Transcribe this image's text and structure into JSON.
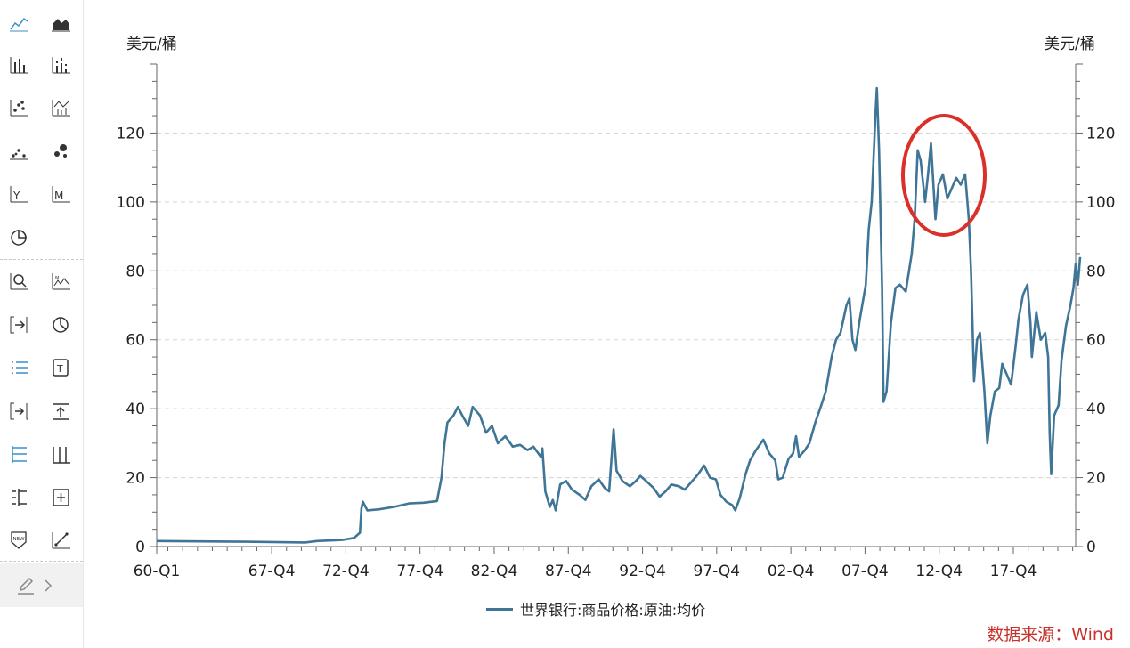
{
  "toolbar": {
    "tools": [
      {
        "icon": "line-chart-icon",
        "active": true
      },
      {
        "icon": "area-chart-icon"
      },
      {
        "icon": "bar-chart-icon"
      },
      {
        "icon": "stacked-bar-chart-icon"
      },
      {
        "icon": "scatter-chart-icon"
      },
      {
        "icon": "waterfall-chart-icon"
      },
      {
        "icon": "dot-plot-icon"
      },
      {
        "icon": "bubble-chart-icon"
      },
      {
        "icon": "yearly-bar-icon"
      },
      {
        "icon": "monthly-bar-icon"
      },
      {
        "icon": "pie-chart-icon"
      },
      {
        "icon": "zoom-icon"
      },
      {
        "icon": "peak-label-icon"
      },
      {
        "icon": "jump-to-end-icon"
      },
      {
        "icon": "pie-slice-icon"
      },
      {
        "icon": "legend-list-icon",
        "active": true
      },
      {
        "icon": "text-box-icon"
      },
      {
        "icon": "shift-right-icon"
      },
      {
        "icon": "upload-axis-icon"
      },
      {
        "icon": "axis-grid-icon",
        "active": true
      },
      {
        "icon": "axis-bar-icon"
      },
      {
        "icon": "split-axis-icon"
      },
      {
        "icon": "add-panel-icon"
      },
      {
        "icon": "new-badge-icon"
      },
      {
        "icon": "trend-line-icon"
      }
    ],
    "bottom_icons": [
      "edit-icon",
      "chevron-right-icon"
    ]
  },
  "chart_data": {
    "type": "line",
    "title": "",
    "ylabel_left": "美元/桶",
    "ylabel_right": "美元/桶",
    "ylim": [
      0,
      140
    ],
    "y_ticks": [
      0,
      20,
      40,
      60,
      80,
      100,
      120
    ],
    "grid": "horizontal dashed",
    "x_range": [
      1960.0,
      2022.25
    ],
    "x_tick_labels": [
      {
        "label": "60-Q1",
        "x": 1960.0
      },
      {
        "label": "67-Q4",
        "x": 1967.75
      },
      {
        "label": "72-Q4",
        "x": 1972.75
      },
      {
        "label": "77-Q4",
        "x": 1977.75
      },
      {
        "label": "82-Q4",
        "x": 1982.75
      },
      {
        "label": "87-Q4",
        "x": 1987.75
      },
      {
        "label": "92-Q4",
        "x": 1992.75
      },
      {
        "label": "97-Q4",
        "x": 1997.75
      },
      {
        "label": "02-Q4",
        "x": 2002.75
      },
      {
        "label": "07-Q4",
        "x": 2007.75
      },
      {
        "label": "12-Q4",
        "x": 2012.75
      },
      {
        "label": "17-Q4",
        "x": 2017.75
      }
    ],
    "series": [
      {
        "name": "世界银行:商品价格:原油:均价",
        "color": "#3f7596",
        "points": [
          [
            1960.0,
            1.6
          ],
          [
            1966.0,
            1.4
          ],
          [
            1970.0,
            1.2
          ],
          [
            1970.8,
            1.6
          ],
          [
            1972.5,
            1.9
          ],
          [
            1973.3,
            2.5
          ],
          [
            1973.7,
            4.0
          ],
          [
            1973.8,
            11.0
          ],
          [
            1973.9,
            13.0
          ],
          [
            1974.2,
            10.5
          ],
          [
            1975.0,
            10.8
          ],
          [
            1976.0,
            11.5
          ],
          [
            1977.0,
            12.5
          ],
          [
            1978.0,
            12.7
          ],
          [
            1978.9,
            13.2
          ],
          [
            1979.2,
            20.0
          ],
          [
            1979.4,
            30.0
          ],
          [
            1979.6,
            36.0
          ],
          [
            1980.0,
            38.0
          ],
          [
            1980.3,
            40.5
          ],
          [
            1980.6,
            38.0
          ],
          [
            1981.0,
            35.0
          ],
          [
            1981.3,
            40.5
          ],
          [
            1981.8,
            38.0
          ],
          [
            1982.2,
            33.0
          ],
          [
            1982.6,
            35.0
          ],
          [
            1983.0,
            30.0
          ],
          [
            1983.5,
            32.0
          ],
          [
            1984.0,
            29.0
          ],
          [
            1984.5,
            29.5
          ],
          [
            1985.0,
            28.0
          ],
          [
            1985.4,
            29.0
          ],
          [
            1985.9,
            26.0
          ],
          [
            1986.0,
            28.5
          ],
          [
            1986.2,
            16.0
          ],
          [
            1986.5,
            11.5
          ],
          [
            1986.7,
            13.5
          ],
          [
            1986.9,
            10.5
          ],
          [
            1987.2,
            18.0
          ],
          [
            1987.6,
            19.0
          ],
          [
            1988.0,
            16.5
          ],
          [
            1988.5,
            15.0
          ],
          [
            1988.9,
            13.5
          ],
          [
            1989.3,
            17.5
          ],
          [
            1989.8,
            19.5
          ],
          [
            1990.2,
            17.0
          ],
          [
            1990.5,
            16.0
          ],
          [
            1990.7,
            28.0
          ],
          [
            1990.8,
            34.0
          ],
          [
            1991.0,
            22.0
          ],
          [
            1991.4,
            19.0
          ],
          [
            1991.9,
            17.5
          ],
          [
            1992.3,
            19.0
          ],
          [
            1992.6,
            20.5
          ],
          [
            1993.0,
            19.0
          ],
          [
            1993.5,
            17.0
          ],
          [
            1993.9,
            14.5
          ],
          [
            1994.3,
            16.0
          ],
          [
            1994.7,
            18.0
          ],
          [
            1995.2,
            17.5
          ],
          [
            1995.6,
            16.5
          ],
          [
            1996.1,
            19.0
          ],
          [
            1996.5,
            21.0
          ],
          [
            1996.9,
            23.5
          ],
          [
            1997.3,
            20.0
          ],
          [
            1997.7,
            19.5
          ],
          [
            1998.0,
            15.0
          ],
          [
            1998.4,
            13.0
          ],
          [
            1998.8,
            12.0
          ],
          [
            1999.0,
            10.5
          ],
          [
            1999.3,
            14.0
          ],
          [
            1999.7,
            21.0
          ],
          [
            2000.0,
            25.0
          ],
          [
            2000.4,
            28.0
          ],
          [
            2000.9,
            31.0
          ],
          [
            2001.3,
            27.0
          ],
          [
            2001.7,
            25.0
          ],
          [
            2001.9,
            19.5
          ],
          [
            2002.2,
            20.0
          ],
          [
            2002.6,
            25.5
          ],
          [
            2002.9,
            27.0
          ],
          [
            2003.1,
            32.0
          ],
          [
            2003.3,
            26.0
          ],
          [
            2003.7,
            28.0
          ],
          [
            2004.0,
            30.0
          ],
          [
            2004.4,
            36.0
          ],
          [
            2004.8,
            41.0
          ],
          [
            2005.1,
            45.0
          ],
          [
            2005.5,
            55.0
          ],
          [
            2005.8,
            60.0
          ],
          [
            2006.1,
            62.0
          ],
          [
            2006.5,
            70.0
          ],
          [
            2006.7,
            72.0
          ],
          [
            2006.9,
            60.0
          ],
          [
            2007.1,
            57.0
          ],
          [
            2007.4,
            66.0
          ],
          [
            2007.8,
            76.0
          ],
          [
            2008.0,
            92.0
          ],
          [
            2008.2,
            100.0
          ],
          [
            2008.45,
            125.0
          ],
          [
            2008.55,
            133.0
          ],
          [
            2008.7,
            115.0
          ],
          [
            2008.9,
            75.0
          ],
          [
            2009.0,
            42.0
          ],
          [
            2009.2,
            45.0
          ],
          [
            2009.5,
            65.0
          ],
          [
            2009.8,
            75.0
          ],
          [
            2010.1,
            76.0
          ],
          [
            2010.5,
            74.0
          ],
          [
            2010.9,
            85.0
          ],
          [
            2011.1,
            95.0
          ],
          [
            2011.3,
            115.0
          ],
          [
            2011.5,
            112.0
          ],
          [
            2011.8,
            100.0
          ],
          [
            2012.0,
            108.0
          ],
          [
            2012.2,
            117.0
          ],
          [
            2012.5,
            95.0
          ],
          [
            2012.7,
            105.0
          ],
          [
            2013.0,
            108.0
          ],
          [
            2013.3,
            101.0
          ],
          [
            2013.6,
            104.0
          ],
          [
            2013.9,
            107.0
          ],
          [
            2014.2,
            105.0
          ],
          [
            2014.5,
            108.0
          ],
          [
            2014.75,
            95.0
          ],
          [
            2014.9,
            80.0
          ],
          [
            2015.1,
            48.0
          ],
          [
            2015.3,
            60.0
          ],
          [
            2015.5,
            62.0
          ],
          [
            2015.8,
            45.0
          ],
          [
            2016.0,
            30.0
          ],
          [
            2016.2,
            38.0
          ],
          [
            2016.5,
            45.0
          ],
          [
            2016.8,
            46.0
          ],
          [
            2017.0,
            53.0
          ],
          [
            2017.3,
            50.0
          ],
          [
            2017.6,
            47.0
          ],
          [
            2017.9,
            58.0
          ],
          [
            2018.1,
            66.0
          ],
          [
            2018.4,
            73.0
          ],
          [
            2018.7,
            76.0
          ],
          [
            2018.9,
            65.0
          ],
          [
            2019.0,
            55.0
          ],
          [
            2019.3,
            68.0
          ],
          [
            2019.6,
            60.0
          ],
          [
            2019.9,
            62.0
          ],
          [
            2020.1,
            55.0
          ],
          [
            2020.2,
            33.0
          ],
          [
            2020.3,
            21.0
          ],
          [
            2020.5,
            38.0
          ],
          [
            2020.8,
            41.0
          ],
          [
            2021.0,
            54.0
          ],
          [
            2021.3,
            64.0
          ],
          [
            2021.6,
            70.0
          ],
          [
            2021.8,
            75.0
          ],
          [
            2021.95,
            82.0
          ],
          [
            2022.1,
            76.0
          ],
          [
            2022.25,
            84.0
          ]
        ]
      }
    ]
  },
  "legend": {
    "label": "世界银行:商品价格:原油:均价"
  },
  "source": "数据来源：Wind"
}
